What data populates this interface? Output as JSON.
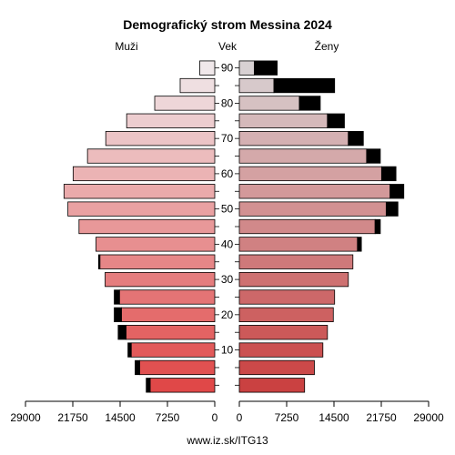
{
  "chart_data": {
    "type": "bar",
    "title": "Demografický strom Messina 2024",
    "left_label": "Muži",
    "center_label": "Vek",
    "right_label": "Ženy",
    "source": "www.iz.sk/ITG13",
    "age_groups": [
      "0-4",
      "5-9",
      "10-14",
      "15-19",
      "20-24",
      "25-29",
      "30-34",
      "35-39",
      "40-44",
      "45-49",
      "50-54",
      "55-59",
      "60-64",
      "65-69",
      "70-74",
      "75-79",
      "80-84",
      "85-89",
      "90+"
    ],
    "y_ticks": [
      10,
      20,
      30,
      40,
      50,
      60,
      70,
      80,
      90
    ],
    "x_ticks_left": [
      "29000",
      "21750",
      "14500",
      "7250",
      "0"
    ],
    "x_ticks_right": [
      "0",
      "7250",
      "14500",
      "21750",
      "29000"
    ],
    "xlim": [
      0,
      29000
    ],
    "series": [
      {
        "name": "Muži",
        "side": "left",
        "values": [
          9900,
          11500,
          12800,
          13600,
          14300,
          14600,
          16800,
          17600,
          18200,
          20800,
          22500,
          23100,
          21700,
          19500,
          16700,
          13500,
          9200,
          5300,
          2300
        ],
        "excess": [
          600,
          700,
          500,
          1200,
          1100,
          800,
          0,
          200,
          0,
          0,
          0,
          0,
          0,
          0,
          0,
          0,
          0,
          0,
          0
        ]
      },
      {
        "name": "Ženy",
        "side": "right",
        "values": [
          10000,
          11500,
          12800,
          13500,
          14400,
          14600,
          16700,
          17400,
          18100,
          20800,
          22500,
          23100,
          21800,
          19500,
          16700,
          13500,
          9200,
          5300,
          2300
        ],
        "excess": [
          0,
          0,
          0,
          0,
          0,
          0,
          0,
          0,
          600,
          800,
          1800,
          2100,
          2200,
          2100,
          2300,
          2600,
          3200,
          9300,
          3500
        ]
      }
    ]
  },
  "colors": {
    "young": "#e04848",
    "old": "#f0e8ea",
    "excess": "#000000"
  }
}
